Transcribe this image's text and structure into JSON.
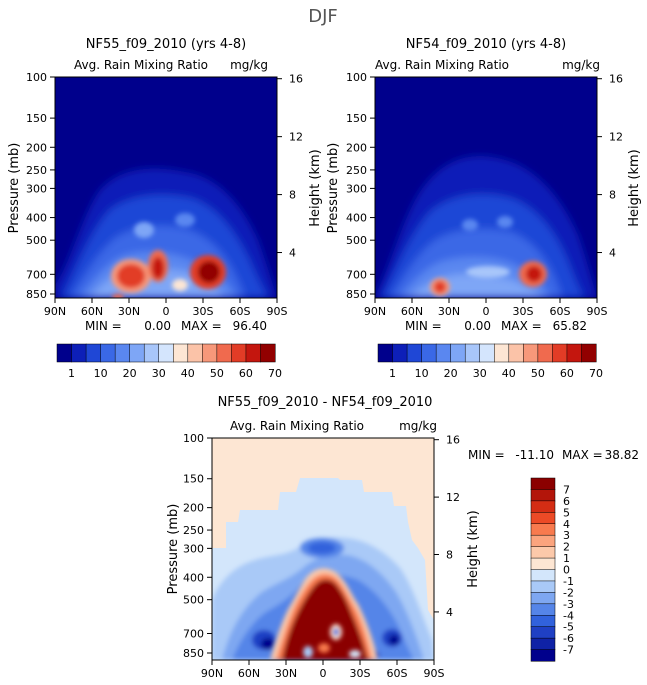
{
  "figure": {
    "season": "DJF"
  },
  "chart_data": [
    {
      "type": "contour",
      "title": "NF55_f09_2010 (yrs 4-8)",
      "subtitle": "Avg. Rain Mixing Ratio",
      "units": "mg/kg",
      "ylabel": "Pressure (mb)",
      "y2label": "Height (km)",
      "xticks": [
        "90N",
        "60N",
        "30N",
        "0",
        "30S",
        "60S",
        "90S"
      ],
      "yticks": [
        100,
        150,
        200,
        250,
        300,
        400,
        500,
        700,
        850
      ],
      "y2ticks": [
        4,
        8,
        12,
        16
      ],
      "min_label": "MIN =",
      "min_value": "0.00",
      "max_label": "MAX =",
      "max_value": "96.40",
      "data_min": 0.0,
      "data_max": 96.4
    },
    {
      "type": "contour",
      "title": "NF54_f09_2010 (yrs 4-8)",
      "subtitle": "Avg. Rain Mixing Ratio",
      "units": "mg/kg",
      "ylabel": "Pressure (mb)",
      "y2label": "Height (km)",
      "xticks": [
        "90N",
        "60N",
        "30N",
        "0",
        "30S",
        "60S",
        "90S"
      ],
      "yticks": [
        100,
        150,
        200,
        250,
        300,
        400,
        500,
        700,
        850
      ],
      "y2ticks": [
        4,
        8,
        12,
        16
      ],
      "min_label": "MIN =",
      "min_value": "0.00",
      "max_label": "MAX =",
      "max_value": "65.82",
      "data_min": 0.0,
      "data_max": 65.82
    },
    {
      "type": "contour",
      "title": "NF55_f09_2010 - NF54_f09_2010",
      "subtitle": "Avg. Rain Mixing Ratio",
      "units": "mg/kg",
      "ylabel": "Pressure (mb)",
      "y2label": "Height (km)",
      "xticks": [
        "90N",
        "60N",
        "30N",
        "0",
        "30S",
        "60S",
        "90S"
      ],
      "yticks": [
        100,
        150,
        200,
        250,
        300,
        400,
        500,
        700,
        850
      ],
      "y2ticks": [
        4,
        8,
        12,
        16
      ],
      "min_label": "MIN =",
      "min_value": "-11.10",
      "max_label": "MAX =",
      "max_value": "38.82",
      "data_min": -11.1,
      "data_max": 38.82
    }
  ],
  "colorbars": {
    "absolute": {
      "labels": [
        "1",
        "10",
        "20",
        "30",
        "40",
        "50",
        "60",
        "70"
      ],
      "colors": [
        "#00008c",
        "#0d1fb8",
        "#1f47d6",
        "#3a68e6",
        "#5a87f0",
        "#7ea6f6",
        "#a8c6fa",
        "#d4e5fd",
        "#fde6d4",
        "#fbc3a8",
        "#f7987a",
        "#f06a4e",
        "#e23c26",
        "#c4160e",
        "#920000"
      ]
    },
    "difference": {
      "labels": [
        "7",
        "6",
        "5",
        "4",
        "3",
        "2",
        "1",
        "0",
        "-1",
        "-2",
        "-3",
        "-4",
        "-5",
        "-6",
        "-7"
      ],
      "colors": [
        "#8b0000",
        "#b3150a",
        "#d42d14",
        "#ec4a26",
        "#f87a4e",
        "#fba47e",
        "#fcc9aa",
        "#fde6d3",
        "#d3e6fb",
        "#a9c9f7",
        "#7ea7f1",
        "#5585e8",
        "#3162dc",
        "#1f40c4",
        "#0f22a6",
        "#00008c"
      ]
    }
  }
}
